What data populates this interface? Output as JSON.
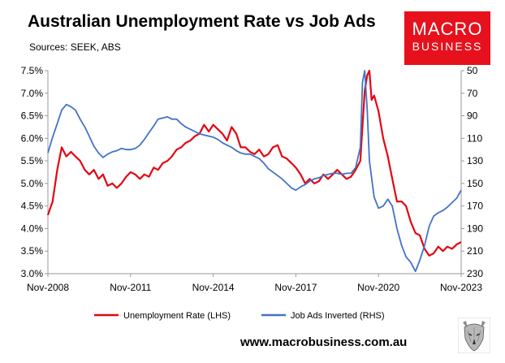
{
  "header": {
    "title": "Australian Unemployment Rate vs Job Ads",
    "sources": "Sources: SEEK, ABS"
  },
  "logo": {
    "line1": "MACRO",
    "line2": "BUSINESS",
    "color": "#e6111c"
  },
  "footer": {
    "url": "www.macrobusiness.com.au"
  },
  "chart_data": {
    "type": "line",
    "title": "Australian Unemployment Rate vs Job Ads",
    "x_range": [
      2008.83,
      2023.83
    ],
    "x_ticks": [
      {
        "x": 2008.83,
        "label": "Nov-2008"
      },
      {
        "x": 2011.83,
        "label": "Nov-2011"
      },
      {
        "x": 2014.83,
        "label": "Nov-2014"
      },
      {
        "x": 2017.83,
        "label": "Nov-2017"
      },
      {
        "x": 2020.83,
        "label": "Nov-2020"
      },
      {
        "x": 2023.83,
        "label": "Nov-2023"
      }
    ],
    "y_left": {
      "range": [
        3.0,
        7.5
      ],
      "ticks": [
        "3.0%",
        "3.5%",
        "4.0%",
        "4.5%",
        "5.0%",
        "5.5%",
        "6.0%",
        "6.5%",
        "7.0%",
        "7.5%"
      ],
      "values": [
        3.0,
        3.5,
        4.0,
        4.5,
        5.0,
        5.5,
        6.0,
        6.5,
        7.0,
        7.5
      ]
    },
    "y_right": {
      "range": [
        50,
        230
      ],
      "inverted": true,
      "ticks": [
        "50",
        "70",
        "90",
        "110",
        "130",
        "150",
        "170",
        "190",
        "210",
        "230"
      ],
      "values": [
        50,
        70,
        90,
        110,
        130,
        150,
        170,
        190,
        210,
        230
      ]
    },
    "grid": false,
    "legend_position": "bottom",
    "series": [
      {
        "name": "Unemployment Rate (LHS)",
        "axis": "left",
        "color": "#e30613",
        "points": [
          [
            2008.83,
            4.3
          ],
          [
            2009.0,
            4.6
          ],
          [
            2009.17,
            5.3
          ],
          [
            2009.33,
            5.8
          ],
          [
            2009.5,
            5.6
          ],
          [
            2009.67,
            5.7
          ],
          [
            2009.83,
            5.6
          ],
          [
            2010.0,
            5.5
          ],
          [
            2010.17,
            5.3
          ],
          [
            2010.33,
            5.2
          ],
          [
            2010.5,
            5.3
          ],
          [
            2010.67,
            5.1
          ],
          [
            2010.83,
            5.2
          ],
          [
            2011.0,
            4.95
          ],
          [
            2011.17,
            5.0
          ],
          [
            2011.33,
            4.9
          ],
          [
            2011.5,
            5.0
          ],
          [
            2011.67,
            5.15
          ],
          [
            2011.83,
            5.25
          ],
          [
            2012.0,
            5.2
          ],
          [
            2012.17,
            5.1
          ],
          [
            2012.33,
            5.2
          ],
          [
            2012.5,
            5.15
          ],
          [
            2012.67,
            5.35
          ],
          [
            2012.83,
            5.3
          ],
          [
            2013.0,
            5.45
          ],
          [
            2013.17,
            5.5
          ],
          [
            2013.33,
            5.6
          ],
          [
            2013.5,
            5.75
          ],
          [
            2013.67,
            5.8
          ],
          [
            2013.83,
            5.9
          ],
          [
            2014.0,
            5.95
          ],
          [
            2014.17,
            6.05
          ],
          [
            2014.33,
            6.1
          ],
          [
            2014.5,
            6.3
          ],
          [
            2014.67,
            6.15
          ],
          [
            2014.83,
            6.3
          ],
          [
            2015.0,
            6.2
          ],
          [
            2015.17,
            6.1
          ],
          [
            2015.33,
            5.95
          ],
          [
            2015.5,
            6.25
          ],
          [
            2015.67,
            6.1
          ],
          [
            2015.83,
            5.8
          ],
          [
            2016.0,
            5.8
          ],
          [
            2016.17,
            5.7
          ],
          [
            2016.33,
            5.65
          ],
          [
            2016.5,
            5.75
          ],
          [
            2016.67,
            5.6
          ],
          [
            2016.83,
            5.65
          ],
          [
            2017.0,
            5.8
          ],
          [
            2017.17,
            5.85
          ],
          [
            2017.33,
            5.6
          ],
          [
            2017.5,
            5.55
          ],
          [
            2017.67,
            5.45
          ],
          [
            2017.83,
            5.35
          ],
          [
            2018.0,
            5.2
          ],
          [
            2018.17,
            5.0
          ],
          [
            2018.33,
            5.1
          ],
          [
            2018.5,
            5.0
          ],
          [
            2018.67,
            5.05
          ],
          [
            2018.83,
            5.2
          ],
          [
            2019.0,
            5.1
          ],
          [
            2019.17,
            5.2
          ],
          [
            2019.33,
            5.3
          ],
          [
            2019.5,
            5.2
          ],
          [
            2019.67,
            5.1
          ],
          [
            2019.83,
            5.15
          ],
          [
            2020.0,
            5.3
          ],
          [
            2020.17,
            5.5
          ],
          [
            2020.33,
            7.05
          ],
          [
            2020.42,
            7.4
          ],
          [
            2020.5,
            7.5
          ],
          [
            2020.58,
            6.85
          ],
          [
            2020.67,
            6.95
          ],
          [
            2020.83,
            6.6
          ],
          [
            2021.0,
            6.0
          ],
          [
            2021.17,
            5.6
          ],
          [
            2021.33,
            5.1
          ],
          [
            2021.5,
            4.6
          ],
          [
            2021.67,
            4.6
          ],
          [
            2021.83,
            4.5
          ],
          [
            2022.0,
            4.15
          ],
          [
            2022.17,
            3.9
          ],
          [
            2022.33,
            3.85
          ],
          [
            2022.5,
            3.55
          ],
          [
            2022.67,
            3.4
          ],
          [
            2022.83,
            3.45
          ],
          [
            2023.0,
            3.6
          ],
          [
            2023.17,
            3.5
          ],
          [
            2023.33,
            3.6
          ],
          [
            2023.5,
            3.55
          ],
          [
            2023.67,
            3.65
          ],
          [
            2023.83,
            3.7
          ]
        ]
      },
      {
        "name": "Job Ads Inverted (RHS)",
        "axis": "right",
        "color": "#4472c4",
        "points": [
          [
            2008.83,
            123
          ],
          [
            2009.0,
            109
          ],
          [
            2009.17,
            97
          ],
          [
            2009.33,
            85
          ],
          [
            2009.5,
            80
          ],
          [
            2009.67,
            82
          ],
          [
            2009.83,
            85
          ],
          [
            2010.0,
            93
          ],
          [
            2010.17,
            100
          ],
          [
            2010.33,
            108
          ],
          [
            2010.5,
            117
          ],
          [
            2010.67,
            123
          ],
          [
            2010.83,
            127
          ],
          [
            2011.0,
            124
          ],
          [
            2011.17,
            122
          ],
          [
            2011.33,
            121
          ],
          [
            2011.5,
            119
          ],
          [
            2011.67,
            120
          ],
          [
            2011.83,
            120
          ],
          [
            2012.0,
            119
          ],
          [
            2012.17,
            116
          ],
          [
            2012.33,
            111
          ],
          [
            2012.5,
            105
          ],
          [
            2012.67,
            99
          ],
          [
            2012.83,
            93
          ],
          [
            2013.0,
            92
          ],
          [
            2013.17,
            91
          ],
          [
            2013.33,
            93
          ],
          [
            2013.5,
            93
          ],
          [
            2013.67,
            97
          ],
          [
            2013.83,
            100
          ],
          [
            2014.0,
            102
          ],
          [
            2014.17,
            104
          ],
          [
            2014.33,
            106
          ],
          [
            2014.5,
            107
          ],
          [
            2014.67,
            108
          ],
          [
            2014.83,
            109
          ],
          [
            2015.0,
            111
          ],
          [
            2015.17,
            114
          ],
          [
            2015.33,
            116
          ],
          [
            2015.5,
            118
          ],
          [
            2015.67,
            121
          ],
          [
            2015.83,
            123
          ],
          [
            2016.0,
            124
          ],
          [
            2016.17,
            124
          ],
          [
            2016.33,
            126
          ],
          [
            2016.5,
            128
          ],
          [
            2016.67,
            132
          ],
          [
            2016.83,
            137
          ],
          [
            2017.0,
            140
          ],
          [
            2017.17,
            143
          ],
          [
            2017.33,
            146
          ],
          [
            2017.5,
            150
          ],
          [
            2017.67,
            154
          ],
          [
            2017.83,
            156
          ],
          [
            2018.0,
            153
          ],
          [
            2018.17,
            151
          ],
          [
            2018.33,
            148
          ],
          [
            2018.5,
            146
          ],
          [
            2018.67,
            145
          ],
          [
            2018.83,
            143
          ],
          [
            2019.0,
            142
          ],
          [
            2019.17,
            141
          ],
          [
            2019.33,
            141
          ],
          [
            2019.5,
            142
          ],
          [
            2019.67,
            141
          ],
          [
            2019.83,
            141
          ],
          [
            2020.0,
            136
          ],
          [
            2020.17,
            118
          ],
          [
            2020.25,
            60
          ],
          [
            2020.33,
            50
          ],
          [
            2020.42,
            85
          ],
          [
            2020.5,
            130
          ],
          [
            2020.67,
            162
          ],
          [
            2020.83,
            172
          ],
          [
            2021.0,
            170
          ],
          [
            2021.17,
            164
          ],
          [
            2021.33,
            170
          ],
          [
            2021.5,
            190
          ],
          [
            2021.67,
            205
          ],
          [
            2021.83,
            215
          ],
          [
            2022.0,
            220
          ],
          [
            2022.17,
            228
          ],
          [
            2022.33,
            218
          ],
          [
            2022.5,
            205
          ],
          [
            2022.67,
            188
          ],
          [
            2022.83,
            179
          ],
          [
            2023.0,
            176
          ],
          [
            2023.17,
            174
          ],
          [
            2023.33,
            171
          ],
          [
            2023.5,
            167
          ],
          [
            2023.67,
            163
          ],
          [
            2023.83,
            156
          ]
        ]
      }
    ]
  }
}
